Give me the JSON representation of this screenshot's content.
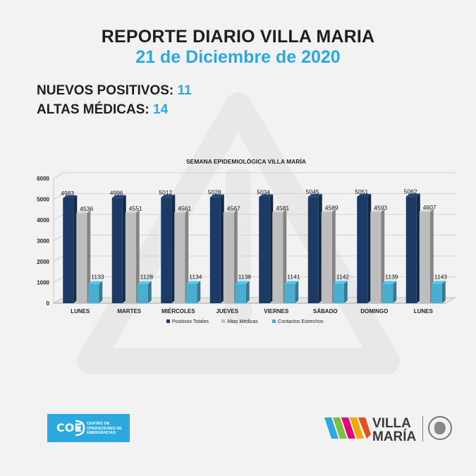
{
  "header": {
    "title": "REPORTE DIARIO VILLA MARIA",
    "date": "21 de Diciembre de 2020"
  },
  "stats": [
    {
      "label": "NUEVOS POSITIVOS:",
      "value": "11"
    },
    {
      "label": "ALTAS MÉDICAS:",
      "value": "14"
    }
  ],
  "chart_data": {
    "type": "bar",
    "title": "SEMANA EPIDEMIOLÓGICA VILLA MARÍA",
    "categories": [
      "LUNES",
      "MARTES",
      "MIÉRCOLES",
      "JUEVES",
      "VIERNES",
      "SÁBADO",
      "DOMINGO",
      "LUNES"
    ],
    "series": [
      {
        "name": "Positivos Totales",
        "color": "#1b3a66",
        "values": [
          4983,
          4996,
          5012,
          5028,
          5034,
          5045,
          5051,
          5062
        ]
      },
      {
        "name": "Altas Médicas",
        "color": "#bdbdbd",
        "values": [
          4536,
          4551,
          4561,
          4567,
          4581,
          4589,
          4593,
          4607
        ]
      },
      {
        "name": "Contactos Estrechos",
        "color": "#4aaed0",
        "values": [
          1133,
          1128,
          1134,
          1138,
          1141,
          1142,
          1139,
          1143
        ]
      }
    ],
    "ylim": [
      0,
      6000
    ],
    "yticks": [
      "6000",
      "5000",
      "4000",
      "3000",
      "2000",
      "1000",
      "0"
    ],
    "legend_position": "bottom",
    "grid": true
  },
  "footer": {
    "coe_abbr": "COE",
    "coe_name": "CENTRO DE OPERACIONES DE EMERGENCIAS",
    "city_line1": "VILLA",
    "city_line2": "MARÍA"
  },
  "colors": {
    "accent": "#2aa8df",
    "dark": "#1e1e1e"
  }
}
